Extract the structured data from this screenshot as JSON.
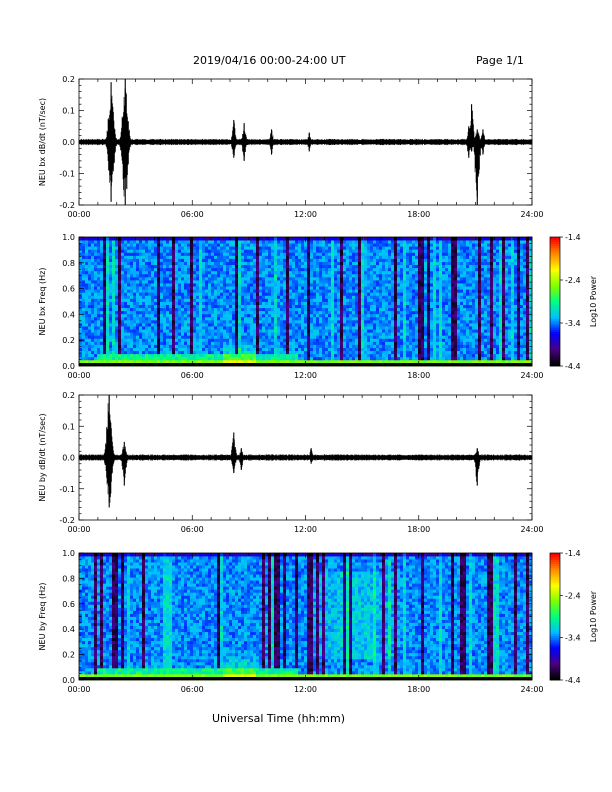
{
  "header": {
    "title": "2019/04/16  00:00-24:00 UT",
    "page": "Page 1/1"
  },
  "chart_data": [
    {
      "type": "line",
      "ylabel": "NEU bx dB/dt (nT/sec)",
      "xlim": [
        0,
        24
      ],
      "ylim": [
        -0.2,
        0.2
      ],
      "xticks": [
        "00:00",
        "06:00",
        "12:00",
        "18:00",
        "24:00"
      ],
      "yticks": [
        "-0.2",
        "-0.1",
        "0.0",
        "0.1",
        "0.2"
      ],
      "events": [
        {
          "t": 1.7,
          "max": 0.19,
          "min": -0.19
        },
        {
          "t": 2.45,
          "max": 0.2,
          "min": -0.2
        },
        {
          "t": 8.2,
          "max": 0.07,
          "min": -0.05
        },
        {
          "t": 8.75,
          "max": 0.06,
          "min": -0.06
        },
        {
          "t": 10.2,
          "max": 0.04,
          "min": -0.04
        },
        {
          "t": 12.2,
          "max": 0.03,
          "min": -0.03
        },
        {
          "t": 20.65,
          "max": 0.05,
          "min": -0.05
        },
        {
          "t": 20.8,
          "max": 0.12,
          "min": -0.03
        },
        {
          "t": 21.1,
          "max": 0.04,
          "min": -0.2
        },
        {
          "t": 21.4,
          "max": 0.04,
          "min": -0.04
        }
      ]
    },
    {
      "type": "heatmap",
      "ylabel": "NEU bx Freq (Hz)",
      "xlim": [
        0,
        24
      ],
      "ylim": [
        0.0,
        1.0
      ],
      "xticks": [
        "00:00",
        "06:00",
        "12:00",
        "18:00",
        "24:00"
      ],
      "yticks": [
        "0.0",
        "0.2",
        "0.4",
        "0.6",
        "0.8",
        "1.0"
      ],
      "colorbar": {
        "label": "Log10 Power",
        "min": -4.4,
        "max": -1.4,
        "ticks": [
          "-1.4",
          "-2.4",
          "-3.4",
          "-4.4"
        ]
      }
    },
    {
      "type": "line",
      "ylabel": "NEU by dB/dt (nT/sec)",
      "xlim": [
        0,
        24
      ],
      "ylim": [
        -0.2,
        0.2
      ],
      "xticks": [
        "00:00",
        "06:00",
        "12:00",
        "18:00",
        "24:00"
      ],
      "yticks": [
        "-0.2",
        "-0.1",
        "0.0",
        "0.1",
        "0.2"
      ],
      "events": [
        {
          "t": 1.6,
          "max": 0.2,
          "min": -0.16
        },
        {
          "t": 2.4,
          "max": 0.05,
          "min": -0.09
        },
        {
          "t": 8.2,
          "max": 0.08,
          "min": -0.05
        },
        {
          "t": 8.6,
          "max": 0.03,
          "min": -0.04
        },
        {
          "t": 12.3,
          "max": 0.03,
          "min": -0.02
        },
        {
          "t": 21.1,
          "max": 0.03,
          "min": -0.09
        }
      ]
    },
    {
      "type": "heatmap",
      "ylabel": "NEU by Freq (Hz)",
      "xlim": [
        0,
        24
      ],
      "ylim": [
        0.0,
        1.0
      ],
      "xticks": [
        "00:00",
        "06:00",
        "12:00",
        "18:00",
        "24:00"
      ],
      "yticks": [
        "0.0",
        "0.2",
        "0.4",
        "0.6",
        "0.8",
        "1.0"
      ],
      "colorbar": {
        "label": "Log10 Power",
        "min": -4.4,
        "max": -1.4,
        "ticks": [
          "-1.4",
          "-2.4",
          "-3.4",
          "-4.4"
        ]
      }
    }
  ],
  "xlabel": "Universal Time (hh:mm)",
  "colors": {
    "trace": "#000000",
    "colormap": [
      "#000000",
      "#4b0082",
      "#0000ff",
      "#00bfff",
      "#00ff7f",
      "#7fff00",
      "#ffff00",
      "#ff8c00",
      "#ff0000"
    ]
  }
}
